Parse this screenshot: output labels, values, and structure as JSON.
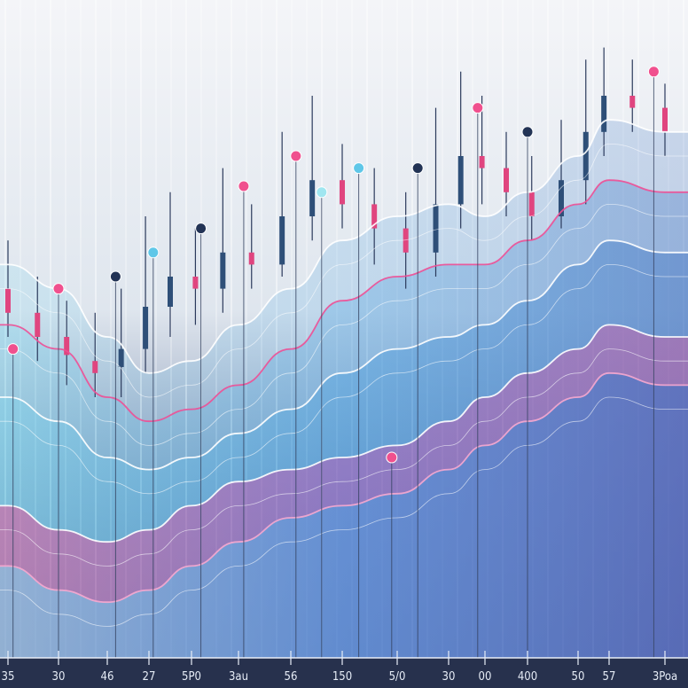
{
  "chart_data": {
    "type": "line",
    "title": "",
    "xlabel": "",
    "ylabel": "",
    "x_tick_labels": [
      "35",
      "30",
      "46",
      "27",
      "5P0",
      "3au",
      "56",
      "150",
      "5/0",
      "30",
      "00",
      "400",
      "50",
      "57",
      "3Poa"
    ],
    "ylim": [
      0,
      100
    ],
    "grid": true,
    "legend": "none",
    "series": [
      {
        "values": [
          62,
          58,
          50,
          44,
          46,
          52,
          58,
          66,
          70,
          72,
          70,
          74,
          80,
          86,
          84
        ]
      },
      {
        "values": [
          52,
          48,
          40,
          36,
          38,
          42,
          48,
          56,
          60,
          62,
          62,
          66,
          72,
          76,
          74
        ]
      },
      {
        "values": [
          40,
          36,
          30,
          28,
          30,
          34,
          38,
          44,
          48,
          50,
          52,
          56,
          62,
          66,
          64
        ]
      },
      {
        "values": [
          22,
          18,
          16,
          18,
          22,
          26,
          28,
          30,
          32,
          36,
          40,
          44,
          48,
          52,
          50
        ]
      },
      {
        "values": [
          12,
          8,
          6,
          8,
          12,
          16,
          20,
          22,
          24,
          28,
          32,
          36,
          40,
          44,
          42
        ]
      }
    ],
    "candles": [
      [
        58,
        54,
        66,
        50
      ],
      [
        54,
        50,
        60,
        46
      ],
      [
        50,
        47,
        56,
        42
      ],
      [
        46,
        44,
        54,
        40
      ],
      [
        45,
        48,
        58,
        40
      ],
      [
        48,
        55,
        70,
        44
      ],
      [
        55,
        60,
        74,
        50
      ],
      [
        60,
        58,
        68,
        52
      ],
      [
        58,
        64,
        78,
        54
      ],
      [
        64,
        62,
        72,
        58
      ],
      [
        62,
        70,
        84,
        60
      ],
      [
        70,
        76,
        90,
        66
      ],
      [
        76,
        72,
        82,
        68
      ],
      [
        72,
        68,
        78,
        62
      ],
      [
        68,
        64,
        74,
        58
      ],
      [
        64,
        72,
        88,
        60
      ],
      [
        72,
        80,
        94,
        68
      ],
      [
        80,
        78,
        90,
        72
      ],
      [
        78,
        74,
        84,
        70
      ],
      [
        74,
        70,
        80,
        66
      ],
      [
        70,
        76,
        86,
        68
      ],
      [
        76,
        84,
        96,
        72
      ],
      [
        84,
        90,
        98,
        80
      ],
      [
        90,
        88,
        96,
        84
      ],
      [
        88,
        84,
        92,
        80
      ]
    ],
    "markers": [
      {
        "x": 1,
        "y": 58,
        "color": "#f0508e"
      },
      {
        "x": 2.2,
        "y": 60,
        "color": "#223355"
      },
      {
        "x": 3.1,
        "y": 64,
        "color": "#5fc7e8"
      },
      {
        "x": 4.2,
        "y": 68,
        "color": "#223355"
      },
      {
        "x": 5.1,
        "y": 75,
        "color": "#f0508e"
      },
      {
        "x": 6.1,
        "y": 80,
        "color": "#f0508e"
      },
      {
        "x": 6.6,
        "y": 74,
        "color": "#9fe6f0"
      },
      {
        "x": 7.3,
        "y": 78,
        "color": "#5fc7e8"
      },
      {
        "x": 8.4,
        "y": 78,
        "color": "#223355"
      },
      {
        "x": 9.8,
        "y": 88,
        "color": "#f0508e"
      },
      {
        "x": 11.0,
        "y": 84,
        "color": "#223355"
      },
      {
        "x": 13.8,
        "y": 94,
        "color": "#f0508e"
      },
      {
        "x": 0.1,
        "y": 48,
        "color": "#f0508e"
      },
      {
        "x": 7.9,
        "y": 30,
        "color": "#f0508e"
      }
    ],
    "colors": {
      "blue": "#3f8ed8",
      "cyan": "#6fd6ee",
      "pink": "#ee4f95",
      "navy": "#2b3654"
    }
  }
}
